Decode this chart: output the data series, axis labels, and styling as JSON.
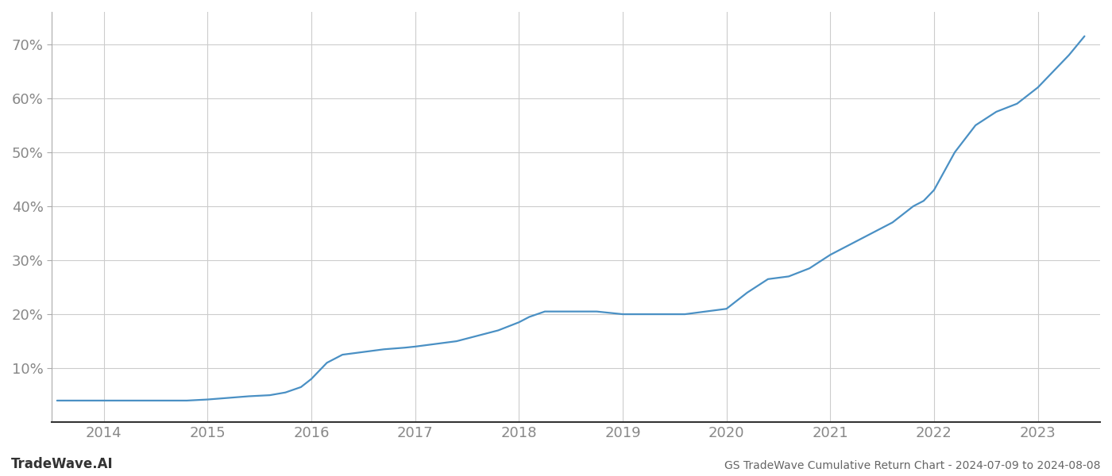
{
  "title": "GS TradeWave Cumulative Return Chart - 2024-07-09 to 2024-08-08",
  "watermark": "TradeWave.AI",
  "line_color": "#4a90c4",
  "background_color": "#ffffff",
  "grid_color": "#cccccc",
  "x_values": [
    2013.55,
    2014.0,
    2014.2,
    2014.4,
    2014.6,
    2014.8,
    2015.0,
    2015.2,
    2015.4,
    2015.6,
    2015.75,
    2015.9,
    2016.0,
    2016.15,
    2016.3,
    2016.5,
    2016.7,
    2016.9,
    2017.0,
    2017.2,
    2017.4,
    2017.6,
    2017.8,
    2018.0,
    2018.1,
    2018.25,
    2018.5,
    2018.75,
    2019.0,
    2019.2,
    2019.4,
    2019.6,
    2019.8,
    2020.0,
    2020.2,
    2020.4,
    2020.6,
    2020.8,
    2021.0,
    2021.2,
    2021.4,
    2021.5,
    2021.6,
    2021.7,
    2021.8,
    2021.9,
    2022.0,
    2022.2,
    2022.4,
    2022.6,
    2022.8,
    2023.0,
    2023.3,
    2023.45
  ],
  "y_values": [
    4.0,
    4.0,
    4.0,
    4.0,
    4.0,
    4.0,
    4.2,
    4.5,
    4.8,
    5.0,
    5.5,
    6.5,
    8.0,
    11.0,
    12.5,
    13.0,
    13.5,
    13.8,
    14.0,
    14.5,
    15.0,
    16.0,
    17.0,
    18.5,
    19.5,
    20.5,
    20.5,
    20.5,
    20.0,
    20.0,
    20.0,
    20.0,
    20.5,
    21.0,
    24.0,
    26.5,
    27.0,
    28.5,
    31.0,
    33.0,
    35.0,
    36.0,
    37.0,
    38.5,
    40.0,
    41.0,
    43.0,
    50.0,
    55.0,
    57.5,
    59.0,
    62.0,
    68.0,
    71.5
  ],
  "xlim": [
    2013.5,
    2023.6
  ],
  "ylim": [
    0,
    76
  ],
  "yticks": [
    10,
    20,
    30,
    40,
    50,
    60,
    70
  ],
  "xticks": [
    2014,
    2015,
    2016,
    2017,
    2018,
    2019,
    2020,
    2021,
    2022,
    2023
  ],
  "xtick_labels": [
    "2014",
    "2015",
    "2016",
    "2017",
    "2018",
    "2019",
    "2020",
    "2021",
    "2022",
    "2023"
  ],
  "line_width": 1.6,
  "title_fontsize": 10,
  "tick_fontsize": 13,
  "watermark_fontsize": 12
}
